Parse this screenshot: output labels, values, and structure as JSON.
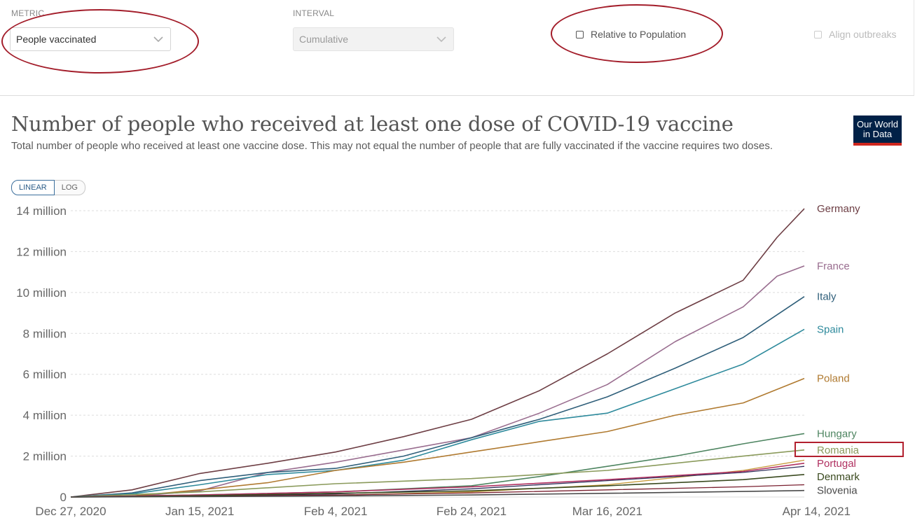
{
  "controls": {
    "metric_label": "METRIC",
    "metric_value": "People vaccinated",
    "interval_label": "INTERVAL",
    "interval_value": "Cumulative",
    "relative_label": "Relative to Population",
    "align_label": "Align outbreaks"
  },
  "colors": {
    "annotation": "#a31d2a",
    "gridline": "#dddddd",
    "logo_bg": "#002147",
    "logo_accent": "#ce261e"
  },
  "logo": {
    "line1": "Our World",
    "line2": "in Data"
  },
  "scale_toggle": {
    "linear": "LINEAR",
    "log": "LOG",
    "active": "LINEAR"
  },
  "chart_data": {
    "type": "line",
    "title": "Number of people who received at least one dose of COVID-19 vaccine",
    "subtitle": "Total number of people who received at least one vaccine dose. This may not equal the number of people that are fully vaccinated if the vaccine requires two doses.",
    "scale": "linear",
    "grid": true,
    "ylim": [
      0,
      14000000
    ],
    "y_ticks": [
      0,
      2000000,
      4000000,
      6000000,
      8000000,
      10000000,
      12000000,
      14000000
    ],
    "y_tick_labels": [
      "0",
      "2 million",
      "4 million",
      "6 million",
      "8 million",
      "10 million",
      "12 million",
      "14 million"
    ],
    "xlim": [
      "2020-12-27",
      "2021-04-14"
    ],
    "x_tick_labels": [
      "Dec 27, 2020",
      "Jan 15, 2021",
      "Feb 4, 2021",
      "Feb 24, 2021",
      "Mar 16, 2021",
      "Apr 14, 2021"
    ],
    "x_tick_dates": [
      "2020-12-27",
      "2021-01-15",
      "2021-02-04",
      "2021-02-24",
      "2021-03-16",
      "2021-04-14"
    ],
    "legend_placement": "inline-right",
    "series": [
      {
        "name": "Germany",
        "color": "#6d3e44",
        "x": [
          "2020-12-27",
          "2021-01-05",
          "2021-01-15",
          "2021-01-25",
          "2021-02-04",
          "2021-02-14",
          "2021-02-24",
          "2021-03-06",
          "2021-03-16",
          "2021-03-26",
          "2021-04-05",
          "2021-04-10",
          "2021-04-14"
        ],
        "y": [
          0,
          350000,
          1150000,
          1650000,
          2200000,
          2950000,
          3800000,
          5200000,
          7000000,
          9000000,
          10600000,
          12700000,
          14100000
        ]
      },
      {
        "name": "France",
        "color": "#996d8f",
        "x": [
          "2020-12-27",
          "2021-01-05",
          "2021-01-15",
          "2021-01-25",
          "2021-02-04",
          "2021-02-14",
          "2021-02-24",
          "2021-03-06",
          "2021-03-16",
          "2021-03-26",
          "2021-04-05",
          "2021-04-10",
          "2021-04-14"
        ],
        "y": [
          0,
          20000,
          300000,
          1200000,
          1700000,
          2300000,
          2900000,
          4100000,
          5500000,
          7600000,
          9300000,
          10800000,
          11300000
        ]
      },
      {
        "name": "Italy",
        "color": "#2f5f7a",
        "x": [
          "2020-12-27",
          "2021-01-05",
          "2021-01-15",
          "2021-01-25",
          "2021-02-04",
          "2021-02-14",
          "2021-02-24",
          "2021-03-06",
          "2021-03-16",
          "2021-03-26",
          "2021-04-05",
          "2021-04-14"
        ],
        "y": [
          0,
          200000,
          800000,
          1200000,
          1400000,
          2000000,
          2900000,
          3800000,
          4900000,
          6300000,
          7800000,
          9800000
        ]
      },
      {
        "name": "Spain",
        "color": "#2e8a9c",
        "x": [
          "2020-12-27",
          "2021-01-05",
          "2021-01-15",
          "2021-01-25",
          "2021-02-04",
          "2021-02-14",
          "2021-02-24",
          "2021-03-06",
          "2021-03-16",
          "2021-03-26",
          "2021-04-05",
          "2021-04-14"
        ],
        "y": [
          0,
          150000,
          600000,
          1100000,
          1300000,
          1800000,
          2800000,
          3700000,
          4100000,
          5300000,
          6500000,
          8200000
        ]
      },
      {
        "name": "Poland",
        "color": "#b07a30",
        "x": [
          "2020-12-27",
          "2021-01-05",
          "2021-01-15",
          "2021-01-25",
          "2021-02-04",
          "2021-02-14",
          "2021-02-24",
          "2021-03-06",
          "2021-03-16",
          "2021-03-26",
          "2021-04-05",
          "2021-04-14"
        ],
        "y": [
          0,
          50000,
          350000,
          700000,
          1300000,
          1700000,
          2200000,
          2700000,
          3200000,
          4000000,
          4600000,
          5800000
        ]
      },
      {
        "name": "Hungary",
        "color": "#4e8561",
        "x": [
          "2020-12-27",
          "2021-01-15",
          "2021-02-04",
          "2021-02-24",
          "2021-03-06",
          "2021-03-16",
          "2021-03-26",
          "2021-04-05",
          "2021-04-14"
        ],
        "y": [
          0,
          100000,
          250000,
          550000,
          1000000,
          1500000,
          2000000,
          2600000,
          3100000
        ]
      },
      {
        "name": "Romania",
        "color": "#8a9a5b",
        "x": [
          "2020-12-27",
          "2021-01-15",
          "2021-02-04",
          "2021-02-24",
          "2021-03-16",
          "2021-04-05",
          "2021-04-14"
        ],
        "y": [
          0,
          250000,
          650000,
          900000,
          1300000,
          2000000,
          2300000
        ]
      },
      {
        "name": "Portugal",
        "color": "#b03060",
        "x": [
          "2020-12-27",
          "2021-01-15",
          "2021-02-04",
          "2021-02-24",
          "2021-03-16",
          "2021-04-05",
          "2021-04-14"
        ],
        "y": [
          0,
          100000,
          250000,
          500000,
          850000,
          1250000,
          1650000
        ]
      },
      {
        "name": "Denmark",
        "color": "#3a4a1f",
        "x": [
          "2020-12-27",
          "2021-01-15",
          "2021-02-04",
          "2021-02-24",
          "2021-03-16",
          "2021-04-05",
          "2021-04-14"
        ],
        "y": [
          0,
          60000,
          180000,
          300000,
          550000,
          850000,
          1100000
        ]
      },
      {
        "name": "Slovenia",
        "color": "#4a4a4a",
        "x": [
          "2020-12-27",
          "2021-01-15",
          "2021-02-04",
          "2021-02-24",
          "2021-03-16",
          "2021-04-05",
          "2021-04-14"
        ],
        "y": [
          0,
          20000,
          50000,
          100000,
          180000,
          270000,
          320000
        ]
      },
      {
        "name": "",
        "color": "#c79a3a",
        "x": [
          "2020-12-27",
          "2021-01-15",
          "2021-02-04",
          "2021-02-24",
          "2021-03-16",
          "2021-04-05",
          "2021-04-14"
        ],
        "y": [
          0,
          30000,
          90000,
          250000,
          600000,
          1300000,
          1800000
        ]
      },
      {
        "name": "",
        "color": "#2f2f5a",
        "x": [
          "2020-12-27",
          "2021-01-15",
          "2021-02-04",
          "2021-02-24",
          "2021-03-16",
          "2021-04-05",
          "2021-04-14"
        ],
        "y": [
          0,
          40000,
          150000,
          400000,
          800000,
          1200000,
          1500000
        ]
      },
      {
        "name": "",
        "color": "#7a2030",
        "x": [
          "2020-12-27",
          "2021-01-15",
          "2021-02-04",
          "2021-02-24",
          "2021-03-16",
          "2021-04-05",
          "2021-04-14"
        ],
        "y": [
          0,
          30000,
          100000,
          200000,
          350000,
          500000,
          600000
        ]
      }
    ]
  }
}
